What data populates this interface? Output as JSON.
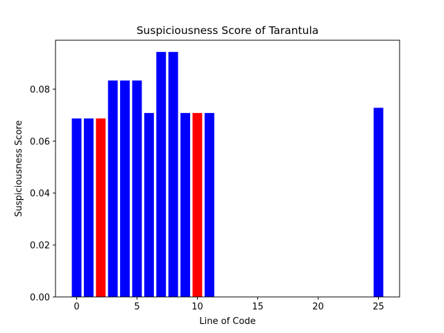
{
  "chart_data": {
    "type": "bar",
    "title": "Suspiciousness Score of Tarantula",
    "xlabel": "Line of Code",
    "ylabel": "Suspiciousness Score",
    "xlim": [
      -1.75,
      26.75
    ],
    "ylim": [
      0,
      0.0988
    ],
    "xticks": [
      0,
      5,
      10,
      15,
      20,
      25
    ],
    "yticks": [
      0.0,
      0.02,
      0.04,
      0.06,
      0.08
    ],
    "ytick_labels": [
      "0.00",
      "0.02",
      "0.04",
      "0.06",
      "0.08"
    ],
    "bar_width": 0.8,
    "grid": false,
    "bars": [
      {
        "x": 0,
        "value": 0.0687,
        "color": "#0000ff"
      },
      {
        "x": 1,
        "value": 0.0687,
        "color": "#0000ff"
      },
      {
        "x": 2,
        "value": 0.0687,
        "color": "#ff0000"
      },
      {
        "x": 3,
        "value": 0.0833,
        "color": "#0000ff"
      },
      {
        "x": 4,
        "value": 0.0833,
        "color": "#0000ff"
      },
      {
        "x": 5,
        "value": 0.0833,
        "color": "#0000ff"
      },
      {
        "x": 6,
        "value": 0.0708,
        "color": "#0000ff"
      },
      {
        "x": 7,
        "value": 0.0943,
        "color": "#0000ff"
      },
      {
        "x": 8,
        "value": 0.0943,
        "color": "#0000ff"
      },
      {
        "x": 9,
        "value": 0.0708,
        "color": "#0000ff"
      },
      {
        "x": 10,
        "value": 0.0708,
        "color": "#ff0000"
      },
      {
        "x": 11,
        "value": 0.0708,
        "color": "#0000ff"
      },
      {
        "x": 25,
        "value": 0.0728,
        "color": "#0000ff"
      }
    ]
  }
}
